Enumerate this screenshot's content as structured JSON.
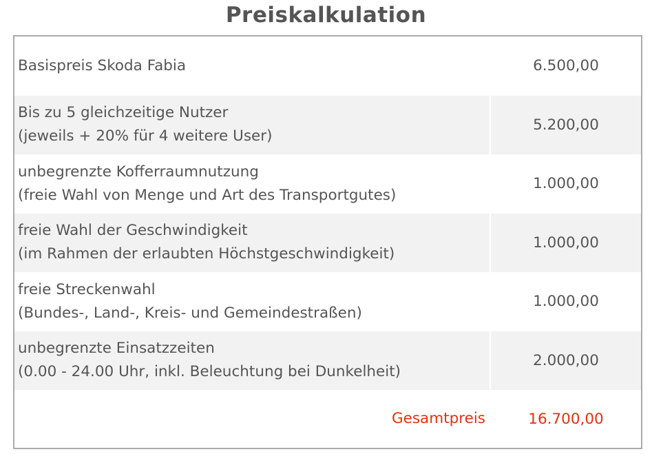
{
  "title": "Preiskalkulation",
  "rows": [
    {
      "line1": "Basispreis Skoda Fabia",
      "line2": "",
      "value": "6.500,00"
    },
    {
      "line1": "Bis zu 5 gleichzeitige Nutzer",
      "line2": "(jeweils + 20% für 4 weitere User)",
      "value": "5.200,00"
    },
    {
      "line1": "unbegrenzte Kofferraumnutzung",
      "line2": "(freie Wahl von Menge und Art des Transportgutes)",
      "value": "1.000,00"
    },
    {
      "line1": "freie Wahl der Geschwindigkeit",
      "line2": "(im Rahmen der erlaubten Höchstgeschwindigkeit)",
      "value": "1.000,00"
    },
    {
      "line1": "freie Streckenwahl",
      "line2": "(Bundes-, Land-, Kreis- und Gemeindestraßen)",
      "value": "1.000,00"
    },
    {
      "line1": "unbegrenzte Einsatzzeiten",
      "line2": "(0.00 - 24.00 Uhr, inkl. Beleuchtung bei Dunkelheit)",
      "value": "2.000,00"
    }
  ],
  "total": {
    "label": "Gesamtpreis",
    "value": "16.700,00"
  },
  "colors": {
    "text": "#555555",
    "total": "#e8300e",
    "stripe": "#f2f2f2",
    "border": "#aaaaaa"
  }
}
